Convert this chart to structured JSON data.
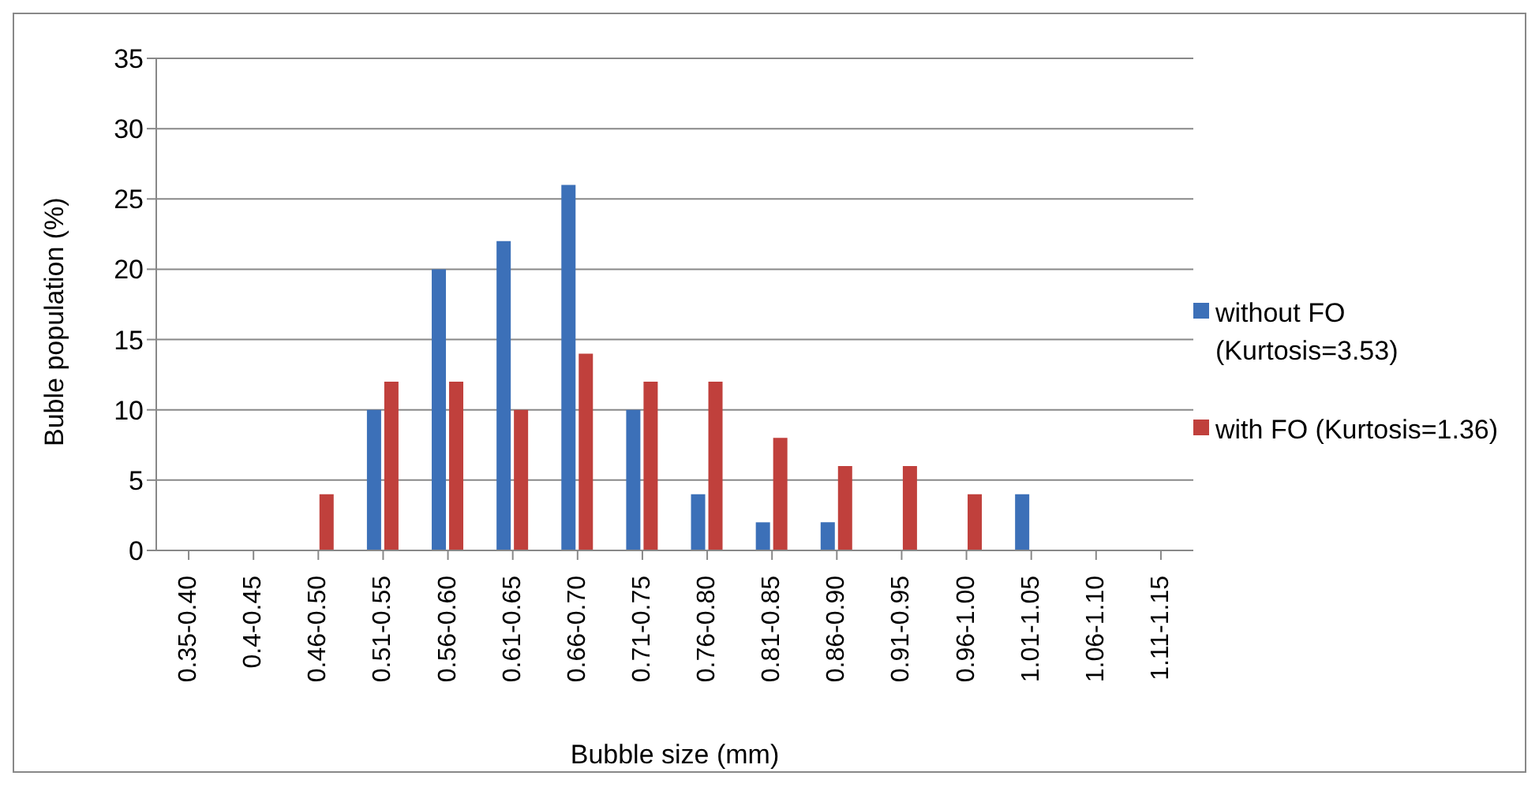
{
  "chart_data": {
    "type": "bar",
    "xlabel": "Bubble size (mm)",
    "ylabel": "Buble population (%)",
    "categories": [
      "0.35-0.40",
      "0.4-0.45",
      "0.46-0.50",
      "0.51-0.55",
      "0.56-0.60",
      "0.61-0.65",
      "0.66-0.70",
      "0.71-0.75",
      "0.76-0.80",
      "0.81-0.85",
      "0.86-0.90",
      "0.91-0.95",
      "0.96-1.00",
      "1.01-1.05",
      "1.06-1.10",
      "1.11-1.15"
    ],
    "series": [
      {
        "name": "without FO (Kurtosis=3.53)",
        "color": "#3c70b8",
        "values": [
          0,
          0,
          0,
          10,
          20,
          22,
          26,
          10,
          4,
          2,
          2,
          0,
          0,
          4,
          0,
          0
        ]
      },
      {
        "name": "with FO (Kurtosis=1.36)",
        "color": "#c0403c",
        "values": [
          0,
          0,
          4,
          12,
          12,
          10,
          14,
          12,
          12,
          8,
          6,
          6,
          4,
          0,
          0,
          0
        ]
      }
    ],
    "ylim": [
      0,
      35
    ],
    "yticks": [
      0,
      5,
      10,
      15,
      20,
      25,
      30,
      35
    ],
    "grid": "y",
    "legend": "right"
  }
}
